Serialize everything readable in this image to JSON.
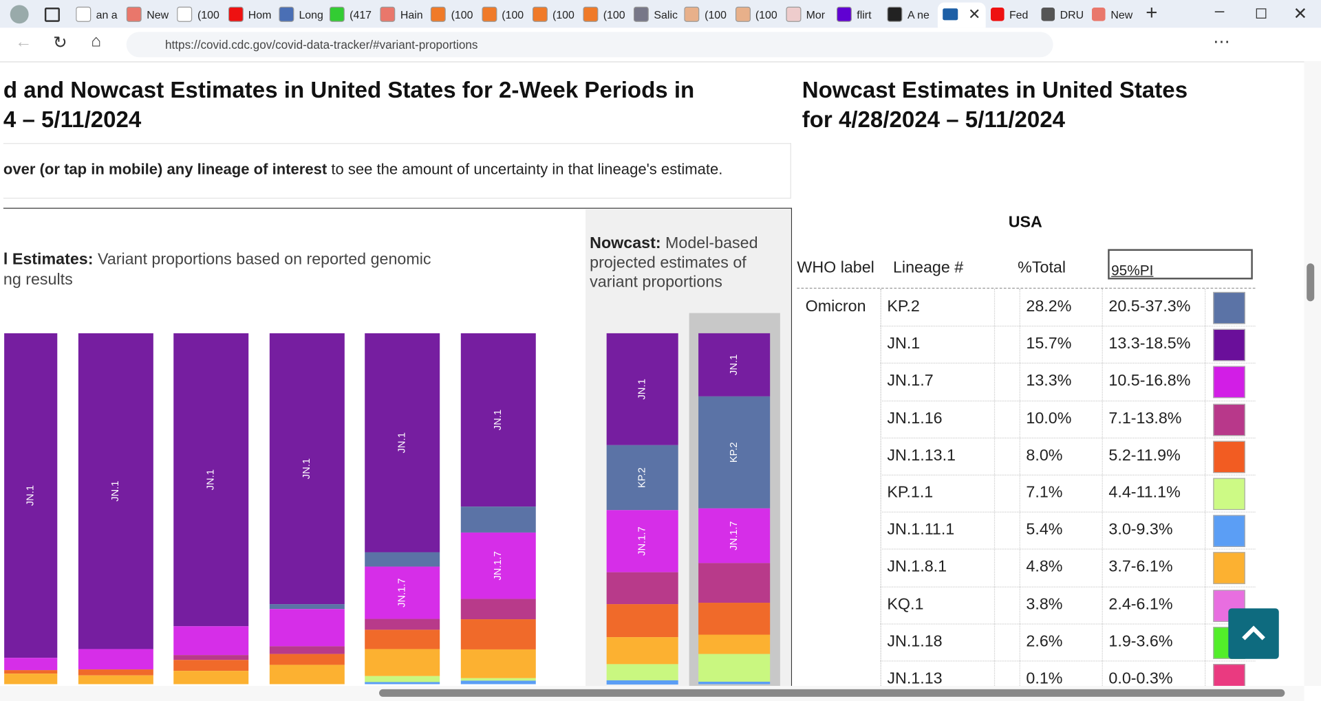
{
  "browser": {
    "tabs_before": [
      "an a",
      "New",
      "(100",
      "Hom",
      "Long",
      "(417",
      "Hain",
      "(100",
      "(100",
      "(100",
      "(100",
      "Salic",
      "(100",
      "(100",
      "Mor",
      "flirt",
      "A ne"
    ],
    "tabs_after": [
      "Fed",
      "DRU",
      "New"
    ],
    "url": "https://covid.cdc.gov/covid-data-tracker/#variant-proportions"
  },
  "left": {
    "title_lines": [
      "d and Nowcast Estimates in United States for 2-Week Periods in",
      "4 – 5/11/2024"
    ],
    "instruction_bold": "over (or tap in mobile) any lineage of interest",
    "instruction_rest": " to see the amount of uncertainty in that lineage's estimate.",
    "weighted_label": "l Estimates:",
    "weighted_text_lines": [
      " Variant proportions based on reported genomic",
      "ng results"
    ],
    "nowcast_label": "Nowcast:",
    "nowcast_text": " Model-based projected estimates of variant proportions"
  },
  "bars": [
    {
      "segments": [
        {
          "value": 92.5,
          "color": "#761ea0",
          "label": "JN.1"
        },
        {
          "value": 3.5,
          "color": "#d62ee8"
        },
        {
          "value": 1,
          "color": "#f06a2a"
        },
        {
          "value": 3,
          "color": "#fcb131"
        }
      ]
    },
    {
      "segments": [
        {
          "value": 90,
          "color": "#761ea0",
          "label": "JN.1"
        },
        {
          "value": 5.8,
          "color": "#d62ee8"
        },
        {
          "value": 1.7,
          "color": "#f06a2a"
        },
        {
          "value": 2.5,
          "color": "#fcb131"
        }
      ]
    },
    {
      "segments": [
        {
          "value": 83.5,
          "color": "#761ea0",
          "label": "JN.1"
        },
        {
          "value": 8.2,
          "color": "#d62ee8"
        },
        {
          "value": 1.4,
          "color": "#b83a8a"
        },
        {
          "value": 3.1,
          "color": "#f06a2a"
        },
        {
          "value": 3.8,
          "color": "#fcb131"
        }
      ]
    },
    {
      "segments": [
        {
          "value": 77.2,
          "color": "#761ea0",
          "label": "JN.1"
        },
        {
          "value": 1.4,
          "color": "#5b73a6"
        },
        {
          "value": 10.6,
          "color": "#d62ee8"
        },
        {
          "value": 2.2,
          "color": "#b83a8a"
        },
        {
          "value": 3.1,
          "color": "#f06a2a"
        },
        {
          "value": 5.5,
          "color": "#fcb131"
        }
      ]
    },
    {
      "segments": [
        {
          "value": 62.4,
          "color": "#761ea0",
          "label": "JN.1"
        },
        {
          "value": 4.1,
          "color": "#5b73a6"
        },
        {
          "value": 14.9,
          "color": "#d62ee8",
          "label": "JN.1.7"
        },
        {
          "value": 3.1,
          "color": "#b83a8a"
        },
        {
          "value": 5.5,
          "color": "#f06a2a"
        },
        {
          "value": 7.7,
          "color": "#fcb131"
        },
        {
          "value": 1.7,
          "color": "#c9f780"
        },
        {
          "value": 0.6,
          "color": "#5b9ef5"
        }
      ]
    },
    {
      "segments": [
        {
          "value": 49.4,
          "color": "#761ea0",
          "label": "JN.1"
        },
        {
          "value": 7.4,
          "color": "#5b73a6"
        },
        {
          "value": 18.9,
          "color": "#d62ee8",
          "label": "JN.1.7"
        },
        {
          "value": 5.8,
          "color": "#b83a8a"
        },
        {
          "value": 8.6,
          "color": "#f06a2a"
        },
        {
          "value": 8.2,
          "color": "#fcb131"
        },
        {
          "value": 0.7,
          "color": "#c9f780"
        },
        {
          "value": 1,
          "color": "#5b9ef5"
        }
      ]
    },
    {
      "segments": [
        {
          "value": 31.9,
          "color": "#761ea0",
          "label": "JN.1"
        },
        {
          "value": 18.5,
          "color": "#5b73a6",
          "label": "KP.2"
        },
        {
          "value": 17.7,
          "color": "#d62ee8",
          "label": "JN.1.7"
        },
        {
          "value": 9.1,
          "color": "#b83a8a"
        },
        {
          "value": 9.4,
          "color": "#f06a2a"
        },
        {
          "value": 7.7,
          "color": "#fcb131"
        },
        {
          "value": 4.6,
          "color": "#c9f780"
        },
        {
          "value": 1.2,
          "color": "#5b9ef5"
        }
      ]
    },
    {
      "segments": [
        {
          "value": 18,
          "color": "#761ea0",
          "label": "JN.1"
        },
        {
          "value": 31.9,
          "color": "#5b73a6",
          "label": "KP.2"
        },
        {
          "value": 15.6,
          "color": "#d62ee8",
          "label": "JN.1.7"
        },
        {
          "value": 11.3,
          "color": "#b83a8a"
        },
        {
          "value": 9.1,
          "color": "#f06a2a"
        },
        {
          "value": 5.5,
          "color": "#fcb131"
        },
        {
          "value": 7.9,
          "color": "#c9f780"
        },
        {
          "value": 0.7,
          "color": "#5b9ef5"
        }
      ]
    }
  ],
  "right": {
    "title_lines": [
      "Nowcast Estimates in United States",
      "for 4/28/2024 – 5/11/2024"
    ],
    "region": "USA",
    "headers": [
      "WHO label",
      "Lineage #",
      "%Total",
      "95%PI"
    ],
    "who_label": "Omicron",
    "rows": [
      {
        "lineage": "KP.2",
        "total": "28.2%",
        "pi": "20.5-37.3%",
        "color": "#5b73a6"
      },
      {
        "lineage": "JN.1",
        "total": "15.7%",
        "pi": "13.3-18.5%",
        "color": "#6a0f9a"
      },
      {
        "lineage": "JN.1.7",
        "total": "13.3%",
        "pi": "10.5-16.8%",
        "color": "#d21ee6"
      },
      {
        "lineage": "JN.1.16",
        "total": "10.0%",
        "pi": "7.1-13.8%",
        "color": "#b8388a"
      },
      {
        "lineage": "JN.1.13.1",
        "total": "8.0%",
        "pi": "5.2-11.9%",
        "color": "#f25c22"
      },
      {
        "lineage": "KP.1.1",
        "total": "7.1%",
        "pi": "4.4-11.1%",
        "color": "#cdfa85"
      },
      {
        "lineage": "JN.1.11.1",
        "total": "5.4%",
        "pi": "3.0-9.3%",
        "color": "#5b9ef5"
      },
      {
        "lineage": "JN.1.8.1",
        "total": "4.8%",
        "pi": "3.7-6.1%",
        "color": "#fcb131"
      },
      {
        "lineage": "KQ.1",
        "total": "3.8%",
        "pi": "2.4-6.1%",
        "color": "#e86ee0"
      },
      {
        "lineage": "JN.1.18",
        "total": "2.6%",
        "pi": "1.9-3.6%",
        "color": "#52ee2a"
      },
      {
        "lineage": "JN.1.13",
        "total": "0.1%",
        "pi": "0.0-0.3%",
        "color": "#ea3a80"
      }
    ]
  }
}
